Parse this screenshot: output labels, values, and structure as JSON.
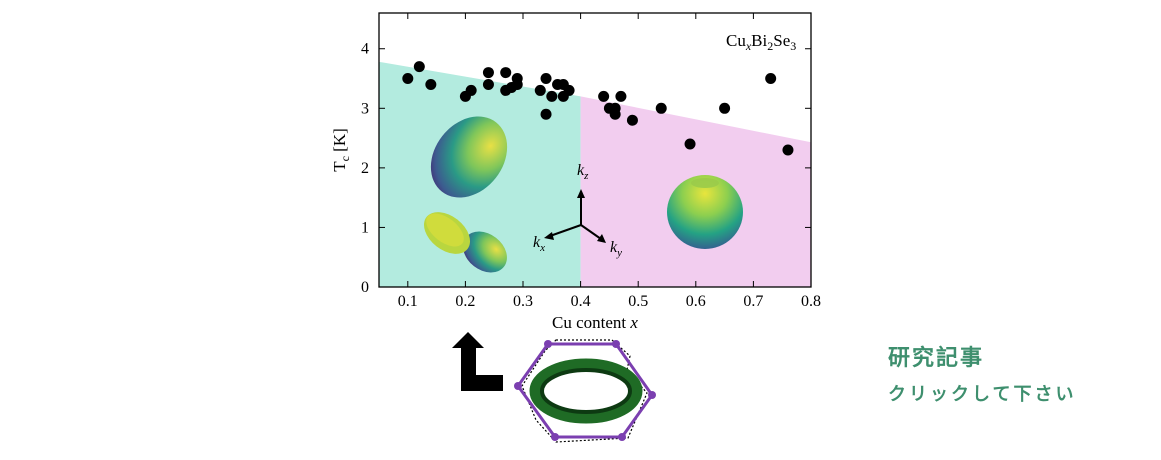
{
  "chart_data": {
    "type": "scatter",
    "title": "",
    "annotation_formula": {
      "main": "Cu",
      "sub1": "x",
      "mid": "Bi",
      "sub2": "2",
      "mid2": "Se",
      "sub3": "3"
    },
    "xlabel": {
      "text": "Cu content ",
      "var": "x"
    },
    "ylabel": {
      "main": "T",
      "sub": "c",
      "unit": " [K]"
    },
    "xlim": [
      0.05,
      0.8
    ],
    "ylim": [
      0,
      4.6
    ],
    "xticks": [
      "0.1",
      "0.2",
      "0.3",
      "0.4",
      "0.5",
      "0.6",
      "0.7",
      "0.8"
    ],
    "xtick_values": [
      0.1,
      0.2,
      0.3,
      0.4,
      0.5,
      0.6,
      0.7,
      0.8
    ],
    "yticks": [
      "0",
      "1",
      "2",
      "3",
      "4"
    ],
    "ytick_values": [
      0,
      1,
      2,
      3,
      4
    ],
    "grid": false,
    "regions": [
      {
        "name": "nematic-region-left",
        "x": [
          0.05,
          0.4
        ],
        "top_y": [
          3.78,
          3.2
        ],
        "color": "#b3ebdf"
      },
      {
        "name": "nematic-region-right",
        "x": [
          0.4,
          0.8
        ],
        "top_y": [
          3.2,
          2.43
        ],
        "color": "#f2cdef"
      }
    ],
    "points": [
      [
        0.1,
        3.5
      ],
      [
        0.12,
        3.7
      ],
      [
        0.14,
        3.4
      ],
      [
        0.2,
        3.2
      ],
      [
        0.21,
        3.3
      ],
      [
        0.24,
        3.6
      ],
      [
        0.24,
        3.4
      ],
      [
        0.27,
        3.6
      ],
      [
        0.27,
        3.3
      ],
      [
        0.28,
        3.35
      ],
      [
        0.29,
        3.5
      ],
      [
        0.29,
        3.4
      ],
      [
        0.33,
        3.3
      ],
      [
        0.34,
        3.5
      ],
      [
        0.35,
        3.2
      ],
      [
        0.34,
        2.9
      ],
      [
        0.36,
        3.4
      ],
      [
        0.37,
        3.4
      ],
      [
        0.37,
        3.2
      ],
      [
        0.38,
        3.3
      ],
      [
        0.44,
        3.2
      ],
      [
        0.45,
        3.0
      ],
      [
        0.46,
        3.0
      ],
      [
        0.46,
        2.9
      ],
      [
        0.47,
        3.2
      ],
      [
        0.49,
        2.8
      ],
      [
        0.54,
        3.0
      ],
      [
        0.59,
        2.4
      ],
      [
        0.65,
        3.0
      ],
      [
        0.73,
        3.5
      ],
      [
        0.76,
        2.3
      ]
    ],
    "point_color": "#000000",
    "axes_inset": {
      "kz": {
        "main": "k",
        "sub": "z"
      },
      "kx": {
        "main": "k",
        "sub": "x"
      },
      "ky": {
        "main": "k",
        "sub": "y"
      }
    }
  },
  "link": {
    "title": "研究記事",
    "subtitle": "クリックして下さい"
  },
  "colors": {
    "hexagon": "#7b3fb0",
    "fermi_surface": "#1f6b25",
    "arrow": "#000000",
    "link_text": "#3e8f6e"
  }
}
